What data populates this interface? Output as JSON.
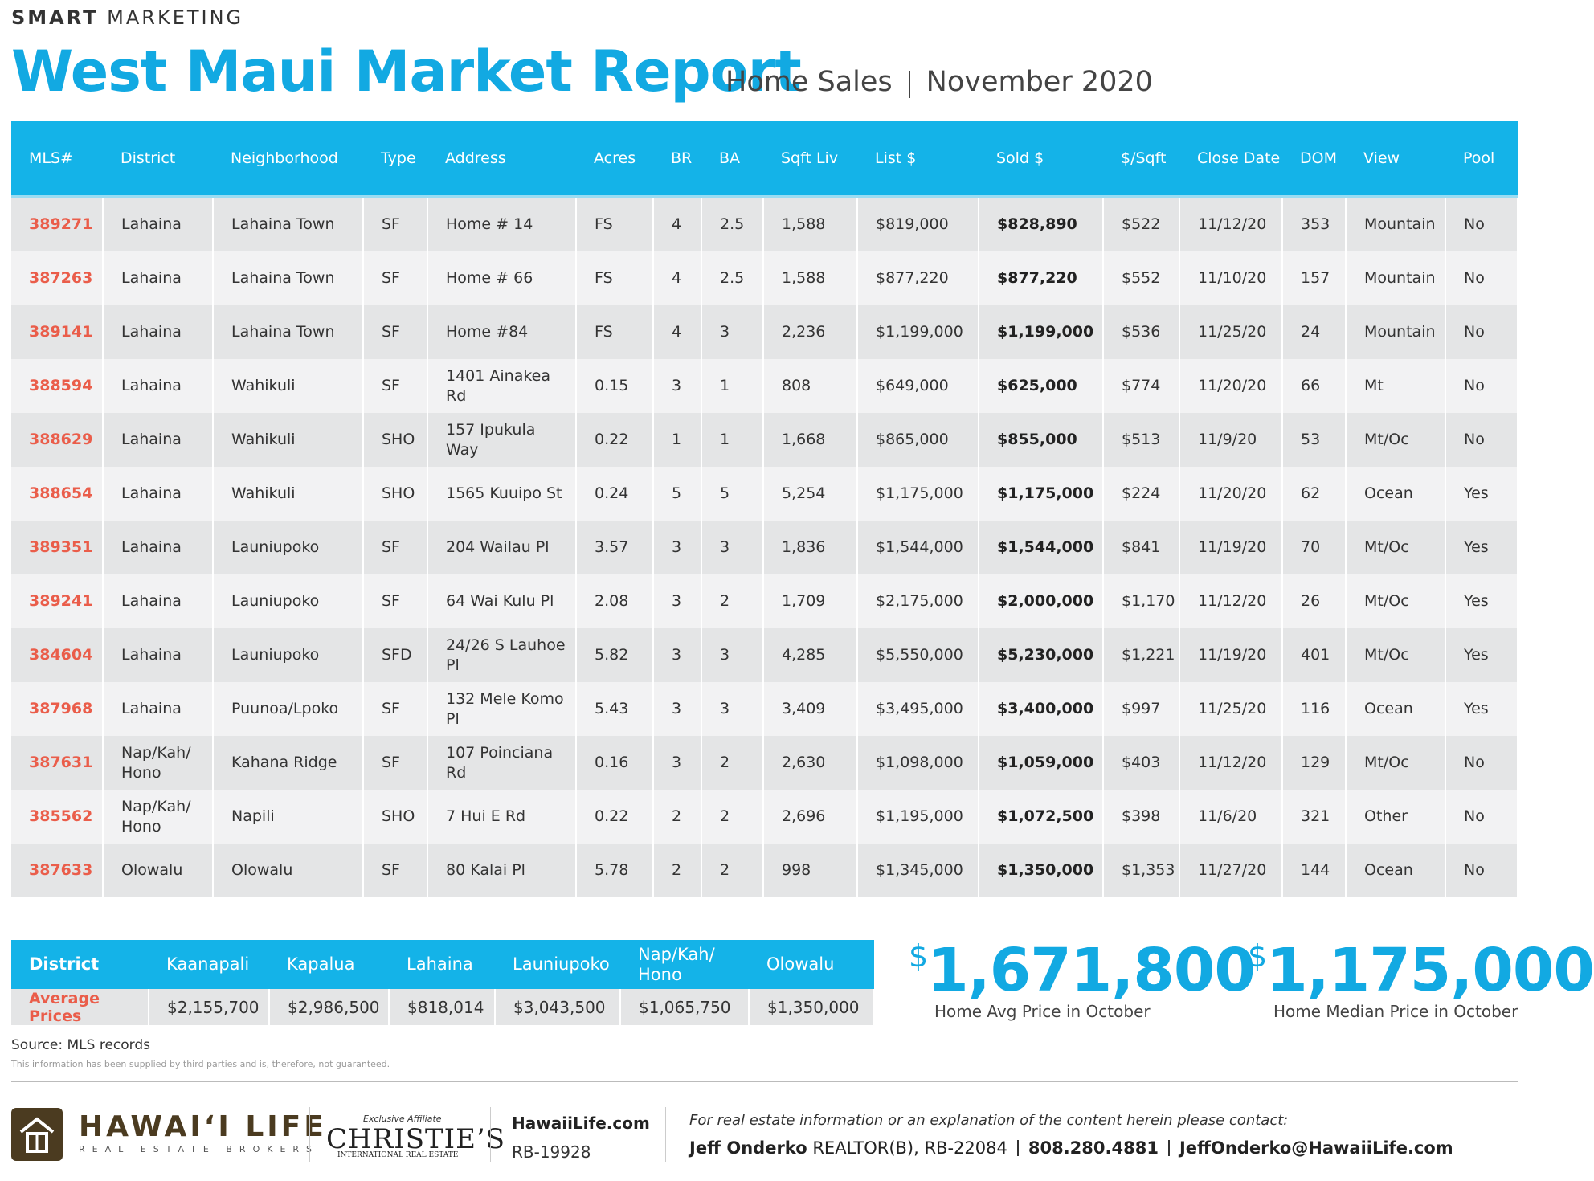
{
  "header": {
    "brand_bold": "SMART",
    "brand_light": "MARKETING",
    "title": "West Maui Market Report",
    "subtitle": "Home Sales",
    "date": "November 2020"
  },
  "table": {
    "columns": [
      "MLS#",
      "District",
      "Neighborhood",
      "Type",
      "Address",
      "Acres",
      "BR",
      "BA",
      "Sqft Liv",
      "List $",
      "Sold $",
      "$/Sqft",
      "Close Date",
      "DOM",
      "View",
      "Pool"
    ],
    "rows": [
      [
        "389271",
        "Lahaina",
        "Lahaina Town",
        "SF",
        "Home # 14",
        "FS",
        "4",
        "2.5",
        "1,588",
        "$819,000",
        "$828,890",
        "$522",
        "11/12/20",
        "353",
        "Mountain",
        "No"
      ],
      [
        "387263",
        "Lahaina",
        "Lahaina Town",
        "SF",
        "Home # 66",
        "FS",
        "4",
        "2.5",
        "1,588",
        "$877,220",
        "$877,220",
        "$552",
        "11/10/20",
        "157",
        "Mountain",
        "No"
      ],
      [
        "389141",
        "Lahaina",
        "Lahaina Town",
        "SF",
        "Home #84",
        "FS",
        "4",
        "3",
        "2,236",
        "$1,199,000",
        "$1,199,000",
        "$536",
        "11/25/20",
        "24",
        "Mountain",
        "No"
      ],
      [
        "388594",
        "Lahaina",
        "Wahikuli",
        "SF",
        "1401 Ainakea Rd",
        "0.15",
        "3",
        "1",
        "808",
        "$649,000",
        "$625,000",
        "$774",
        "11/20/20",
        "66",
        "Mt",
        "No"
      ],
      [
        "388629",
        "Lahaina",
        "Wahikuli",
        "SHO",
        "157 Ipukula Way",
        "0.22",
        "1",
        "1",
        "1,668",
        "$865,000",
        "$855,000",
        "$513",
        "11/9/20",
        "53",
        "Mt/Oc",
        "No"
      ],
      [
        "388654",
        "Lahaina",
        "Wahikuli",
        "SHO",
        "1565 Kuuipo St",
        "0.24",
        "5",
        "5",
        "5,254",
        "$1,175,000",
        "$1,175,000",
        "$224",
        "11/20/20",
        "62",
        "Ocean",
        "Yes"
      ],
      [
        "389351",
        "Lahaina",
        "Launiupoko",
        "SF",
        "204 Wailau Pl",
        "3.57",
        "3",
        "3",
        "1,836",
        "$1,544,000",
        "$1,544,000",
        "$841",
        "11/19/20",
        "70",
        "Mt/Oc",
        "Yes"
      ],
      [
        "389241",
        "Lahaina",
        "Launiupoko",
        "SF",
        "64 Wai Kulu Pl",
        "2.08",
        "3",
        "2",
        "1,709",
        "$2,175,000",
        "$2,000,000",
        "$1,170",
        "11/12/20",
        "26",
        "Mt/Oc",
        "Yes"
      ],
      [
        "384604",
        "Lahaina",
        "Launiupoko",
        "SFD",
        "24/26 S Lauhoe Pl",
        "5.82",
        "3",
        "3",
        "4,285",
        "$5,550,000",
        "$5,230,000",
        "$1,221",
        "11/19/20",
        "401",
        "Mt/Oc",
        "Yes"
      ],
      [
        "387968",
        "Lahaina",
        "Puunoa/Lpoko",
        "SF",
        "132 Mele Komo Pl",
        "5.43",
        "3",
        "3",
        "3,409",
        "$3,495,000",
        "$3,400,000",
        "$997",
        "11/25/20",
        "116",
        "Ocean",
        "Yes"
      ],
      [
        "387631",
        "Nap/Kah/ Hono",
        "Kahana Ridge",
        "SF",
        "107 Poinciana Rd",
        "0.16",
        "3",
        "2",
        "2,630",
        "$1,098,000",
        "$1,059,000",
        "$403",
        "11/12/20",
        "129",
        "Mt/Oc",
        "No"
      ],
      [
        "385562",
        "Nap/Kah/ Hono",
        "Napili",
        "SHO",
        "7 Hui E Rd",
        "0.22",
        "2",
        "2",
        "2,696",
        "$1,195,000",
        "$1,072,500",
        "$398",
        "11/6/20",
        "321",
        "Other",
        "No"
      ],
      [
        "387633",
        "Olowalu",
        "Olowalu",
        "SF",
        "80 Kalai Pl",
        "5.78",
        "2",
        "2",
        "998",
        "$1,345,000",
        "$1,350,000",
        "$1,353",
        "11/27/20",
        "144",
        "Ocean",
        "No"
      ]
    ]
  },
  "averages": {
    "header_label": "District",
    "districts": [
      "Kaanapali",
      "Kapalua",
      "Lahaina",
      "Launiupoko",
      "Nap/Kah/ Hono",
      "Olowalu"
    ],
    "row_label": "Average Prices",
    "values": [
      "$2,155,700",
      "$2,986,500",
      "$818,014",
      "$3,043,500",
      "$1,065,750",
      "$1,350,000"
    ]
  },
  "stats": [
    {
      "currency": "$",
      "value": "1,671,800",
      "label": "Home Avg Price in October"
    },
    {
      "currency": "$",
      "value": "1,175,000",
      "label": "Home Median Price in October"
    }
  ],
  "source": {
    "text": "Source: MLS records",
    "disclaimer": "This information has been supplied by third parties and is, therefore, not guaranteed."
  },
  "footer": {
    "logo_name": "HAWAI‘I LIFE",
    "logo_tag": "REAL ESTATE BROKERS",
    "affiliate": "Exclusive Affiliate",
    "christies": "CHRISTIE’S",
    "christies_sub": "INTERNATIONAL REAL ESTATE",
    "website": "HawaiiLife.com",
    "license": "RB-19928",
    "contact_note": "For real estate information or an explanation of the content herein please contact:",
    "agent_name": "Jeff Onderko",
    "agent_title": "REALTOR(B), RB-22084",
    "phone": "808.280.4881",
    "email": "JeffOnderko@HawaiiLife.com"
  }
}
